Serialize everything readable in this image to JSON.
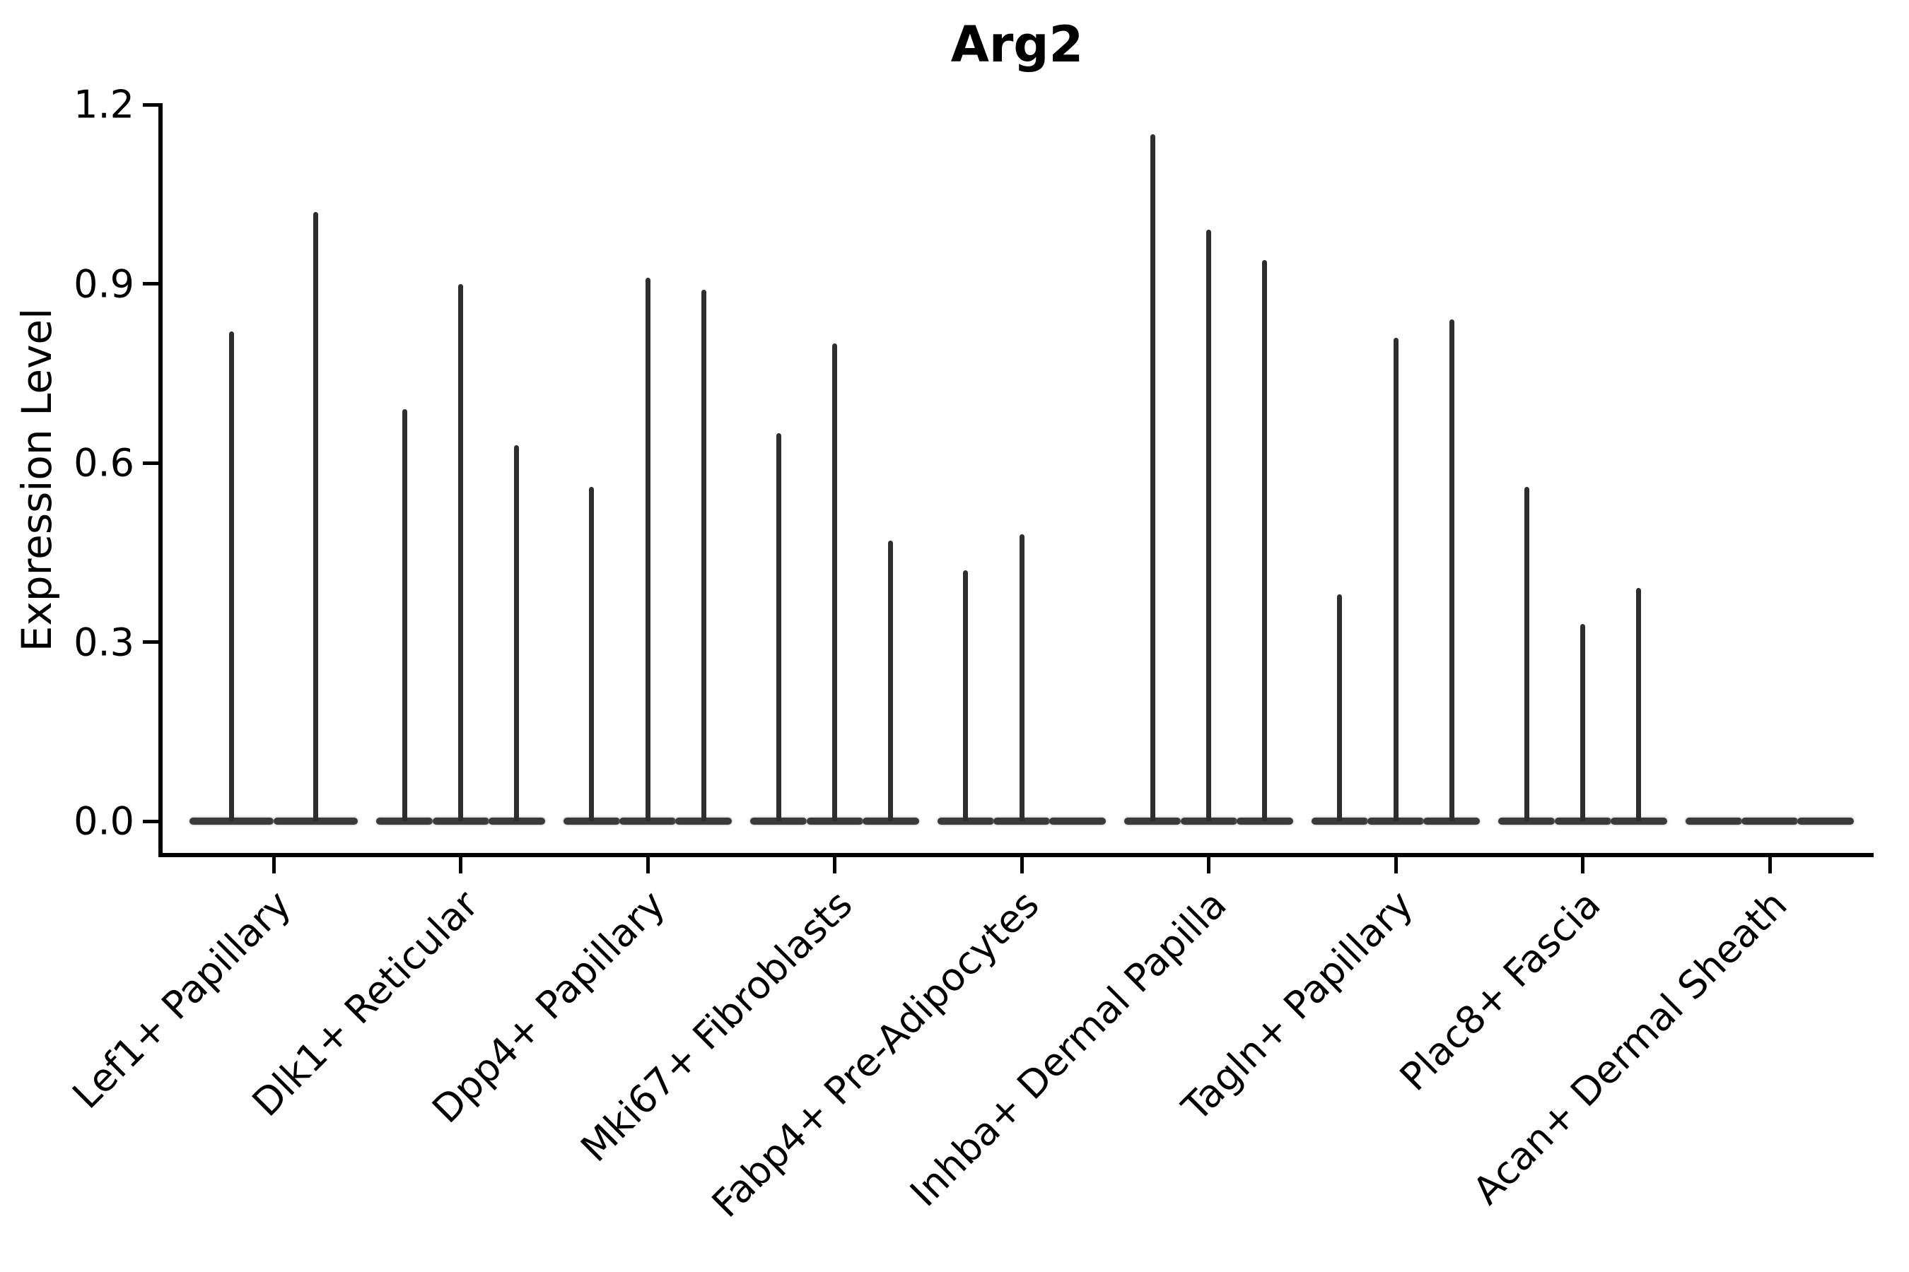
{
  "chart_data": {
    "type": "violin",
    "title": "Arg2",
    "ylabel": "Expression Level",
    "xlabel": "",
    "ylim": [
      0,
      1.2
    ],
    "y_ticks": [
      "0.0",
      "0.3",
      "0.6",
      "0.9",
      "1.2"
    ],
    "y_tick_values": [
      0,
      0.3,
      0.6,
      0.9,
      1.2
    ],
    "grid": false,
    "legend": "none",
    "categories": [
      "Lef1+ Papillary",
      "Dlk1+ Reticular",
      "Dpp4+ Papillary",
      "Mki67+ Fibroblasts",
      "Fabp4+ Pre-Adipocytes",
      "Inhba+ Dermal Papilla",
      "Tagln+ Papillary",
      "Plac8+ Fascia",
      "Acan+ Dermal Sheath"
    ],
    "violins": [
      {
        "category": "Lef1+ Papillary",
        "max_values": [
          0.82,
          1.02
        ]
      },
      {
        "category": "Dlk1+ Reticular",
        "max_values": [
          0.69,
          0.9,
          0.63
        ]
      },
      {
        "category": "Dpp4+ Papillary",
        "max_values": [
          0.56,
          0.91,
          0.89
        ]
      },
      {
        "category": "Mki67+ Fibroblasts",
        "max_values": [
          0.65,
          0.8,
          0.47
        ]
      },
      {
        "category": "Fabp4+ Pre-Adipocytes",
        "max_values": [
          0.42,
          0.48,
          0.0
        ]
      },
      {
        "category": "Inhba+ Dermal Papilla",
        "max_values": [
          1.15,
          0.99,
          0.94
        ]
      },
      {
        "category": "Tagln+ Papillary",
        "max_values": [
          0.38,
          0.81,
          0.84
        ]
      },
      {
        "category": "Plac8+ Fascia",
        "max_values": [
          0.56,
          0.33,
          0.39
        ]
      },
      {
        "category": "Acan+ Dermal Sheath",
        "max_values": [
          0.0,
          0.0,
          0.0
        ]
      }
    ],
    "colors": {
      "violin": "#2e2e2e",
      "axis": "#000000",
      "text": "#000000",
      "background": "#ffffff"
    }
  }
}
